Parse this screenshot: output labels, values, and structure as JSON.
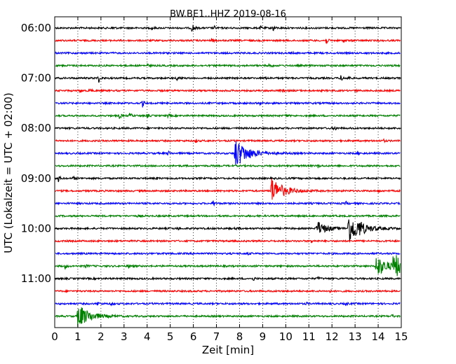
{
  "chart_data": {
    "type": "line",
    "title": "BW.BE1..HHZ 2019-08-16",
    "xlabel": "Zeit  [min]",
    "ylabel": "UTC (Lokalzeit = UTC + 02:00)",
    "xlim": [
      0,
      15
    ],
    "xticks": [
      "0",
      "1",
      "2",
      "3",
      "4",
      "5",
      "6",
      "7",
      "8",
      "9",
      "10",
      "11",
      "12",
      "13",
      "14",
      "15"
    ],
    "yticks": [
      {
        "label": "06:00",
        "trace": 0
      },
      {
        "label": "07:00",
        "trace": 4
      },
      {
        "label": "08:00",
        "trace": 8
      },
      {
        "label": "09:00",
        "trace": 12
      },
      {
        "label": "10:00",
        "trace": 16
      },
      {
        "label": "11:00",
        "trace": 20
      }
    ],
    "grid": "vertical dotted",
    "trace_colors": [
      "#000000",
      "#ff0000",
      "#0000ff",
      "#008000"
    ],
    "traces": [
      {
        "start": "06:00",
        "events": [
          {
            "t": 2.5,
            "a": 0.4
          },
          {
            "t": 4.2,
            "a": 0.3
          },
          {
            "t": 5.95,
            "a": 1.0
          },
          {
            "t": 6.9,
            "a": 0.3
          },
          {
            "t": 8.9,
            "a": 0.3
          },
          {
            "t": 9.45,
            "a": 0.5
          }
        ]
      },
      {
        "start": "06:15",
        "events": [
          {
            "t": 6.8,
            "a": 0.4
          },
          {
            "t": 11.75,
            "a": 0.6
          },
          {
            "t": 12.5,
            "a": 0.3
          }
        ]
      },
      {
        "start": "06:30",
        "events": [
          {
            "t": 4.6,
            "a": 0.2
          },
          {
            "t": 10.2,
            "a": 0.2
          }
        ]
      },
      {
        "start": "06:45",
        "events": [
          {
            "t": 4.0,
            "a": 0.2
          },
          {
            "t": 9.3,
            "a": 0.5
          },
          {
            "t": 14.5,
            "a": 0.2
          }
        ]
      },
      {
        "start": "07:00",
        "events": [
          {
            "t": 1.9,
            "a": 0.7
          },
          {
            "t": 5.3,
            "a": 0.8
          },
          {
            "t": 9.1,
            "a": 0.3
          },
          {
            "t": 12.4,
            "a": 0.8
          },
          {
            "t": 12.7,
            "a": 0.4
          }
        ]
      },
      {
        "start": "07:15",
        "events": [
          {
            "t": 1.1,
            "a": 0.3
          },
          {
            "t": 1.5,
            "a": 0.3
          },
          {
            "t": 9.8,
            "a": 0.2
          },
          {
            "t": 13.0,
            "a": 0.2
          }
        ]
      },
      {
        "start": "07:30",
        "events": [
          {
            "t": 3.8,
            "a": 0.6
          },
          {
            "t": 8.9,
            "a": 0.3
          }
        ]
      },
      {
        "start": "07:45",
        "events": [
          {
            "t": 2.8,
            "a": 0.5
          },
          {
            "t": 3.25,
            "a": 0.6
          },
          {
            "t": 4.0,
            "a": 0.3
          },
          {
            "t": 4.9,
            "a": 0.3
          },
          {
            "t": 10.0,
            "a": 0.3
          }
        ]
      },
      {
        "start": "08:00",
        "events": [
          {
            "t": 12.1,
            "a": 0.5
          }
        ]
      },
      {
        "start": "08:15",
        "events": [
          {
            "t": 6.1,
            "a": 0.3
          },
          {
            "t": 14.2,
            "a": 0.3
          }
        ]
      },
      {
        "start": "08:30",
        "events": [
          {
            "t": 4.9,
            "a": 0.4
          },
          {
            "t": 7.8,
            "a": 2.4
          },
          {
            "t": 13.1,
            "a": 0.3
          }
        ]
      },
      {
        "start": "08:45",
        "events": [
          {
            "t": 11.4,
            "a": 0.3
          }
        ]
      },
      {
        "start": "09:00",
        "events": [
          {
            "t": 0.15,
            "a": 0.6
          },
          {
            "t": 0.8,
            "a": 0.3
          },
          {
            "t": 4.4,
            "a": 0.2
          }
        ]
      },
      {
        "start": "09:15",
        "events": [
          {
            "t": 9.35,
            "a": 2.2
          },
          {
            "t": 14.0,
            "a": 0.3
          }
        ]
      },
      {
        "start": "09:30",
        "events": [
          {
            "t": 6.85,
            "a": 0.6
          },
          {
            "t": 12.6,
            "a": 0.3
          }
        ]
      },
      {
        "start": "09:45",
        "events": [
          {
            "t": 3.6,
            "a": 0.2
          }
        ]
      },
      {
        "start": "10:00",
        "events": [
          {
            "t": 5.3,
            "a": 0.3
          },
          {
            "t": 7.9,
            "a": 0.3
          },
          {
            "t": 11.35,
            "a": 1.2
          },
          {
            "t": 12.7,
            "a": 2.4
          },
          {
            "t": 13.2,
            "a": 0.8
          }
        ]
      },
      {
        "start": "10:15",
        "events": [
          {
            "t": 11.1,
            "a": 0.3
          }
        ]
      },
      {
        "start": "10:30",
        "events": [
          {
            "t": 8.35,
            "a": 0.3
          }
        ]
      },
      {
        "start": "10:45",
        "events": [
          {
            "t": 0.45,
            "a": 0.4
          },
          {
            "t": 1.35,
            "a": 0.3
          },
          {
            "t": 3.2,
            "a": 0.3
          },
          {
            "t": 13.9,
            "a": 1.8
          },
          {
            "t": 14.65,
            "a": 2.0
          }
        ]
      },
      {
        "start": "11:00",
        "events": [
          {
            "t": 8.6,
            "a": 0.3
          },
          {
            "t": 11.4,
            "a": 0.3
          }
        ]
      },
      {
        "start": "11:15",
        "events": [
          {
            "t": 11.9,
            "a": 0.2
          }
        ]
      },
      {
        "start": "11:30",
        "events": [
          {
            "t": 1.85,
            "a": 0.3
          },
          {
            "t": 2.45,
            "a": 0.3
          },
          {
            "t": 10.9,
            "a": 0.2
          },
          {
            "t": 12.6,
            "a": 0.3
          }
        ]
      },
      {
        "start": "11:45",
        "events": [
          {
            "t": 1.0,
            "a": 2.0
          },
          {
            "t": 14.6,
            "a": 0.3
          }
        ]
      }
    ]
  }
}
